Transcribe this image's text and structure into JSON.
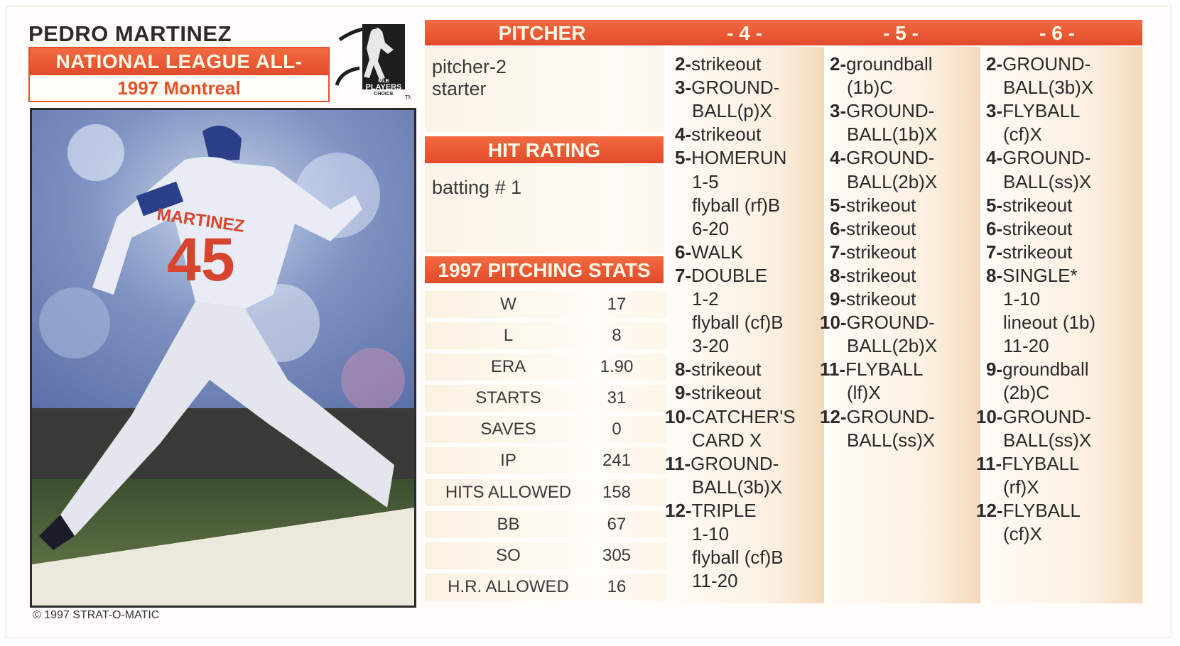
{
  "player": {
    "name": "PEDRO MARTINEZ",
    "allstar": "NATIONAL LEAGUE ALL-STAR",
    "season_team": "1997 Montreal"
  },
  "logo": {
    "text_top": "MLB",
    "text_main": "PLAYERS",
    "text_sub": "CHOICE",
    "tm": "TM"
  },
  "photo": {
    "jersey_name": "MARTINEZ",
    "jersey_number": "45"
  },
  "copyright": "© 1997 STRAT-O-MATIC",
  "header": {
    "pitcher": "PITCHER",
    "col4": "- 4 -",
    "col5": "- 5 -",
    "col6": "- 6 -"
  },
  "pitcher_info": {
    "line1": "pitcher-2",
    "line2": "starter"
  },
  "hit_rating": {
    "title": "HIT RATING",
    "value": "batting # 1"
  },
  "pitching_stats": {
    "title": "1997 PITCHING STATS",
    "rows": [
      {
        "label": "W",
        "value": "17"
      },
      {
        "label": "L",
        "value": "8"
      },
      {
        "label": "ERA",
        "value": "1.90"
      },
      {
        "label": "STARTS",
        "value": "31"
      },
      {
        "label": "SAVES",
        "value": "0"
      },
      {
        "label": "IP",
        "value": "241"
      },
      {
        "label": "HITS ALLOWED",
        "value": "158"
      },
      {
        "label": "BB",
        "value": "67"
      },
      {
        "label": "SO",
        "value": "305"
      },
      {
        "label": "H.R. ALLOWED",
        "value": "16"
      }
    ]
  },
  "columns": [
    {
      "id": "4",
      "lines": [
        {
          "n": "2-",
          "t": "strikeout"
        },
        {
          "n": "3-",
          "t": "GROUND-"
        },
        {
          "n": "",
          "t": "BALL(p)X"
        },
        {
          "n": "4-",
          "t": "strikeout"
        },
        {
          "n": "5-",
          "t": "HOMERUN"
        },
        {
          "n": "",
          "t": "1-5"
        },
        {
          "n": "",
          "t": "flyball (rf)B"
        },
        {
          "n": "",
          "t": "6-20"
        },
        {
          "n": "6-",
          "t": "WALK"
        },
        {
          "n": "7-",
          "t": "DOUBLE"
        },
        {
          "n": "",
          "t": "1-2"
        },
        {
          "n": "",
          "t": "flyball (cf)B"
        },
        {
          "n": "",
          "t": "3-20"
        },
        {
          "n": "8-",
          "t": "strikeout"
        },
        {
          "n": "9-",
          "t": "strikeout"
        },
        {
          "n": "10-",
          "t": "CATCHER'S"
        },
        {
          "n": "",
          "t": "CARD X"
        },
        {
          "n": "11-",
          "t": "GROUND-"
        },
        {
          "n": "",
          "t": "BALL(3b)X"
        },
        {
          "n": "12-",
          "t": "TRIPLE"
        },
        {
          "n": "",
          "t": "1-10"
        },
        {
          "n": "",
          "t": "flyball (cf)B"
        },
        {
          "n": "",
          "t": "11-20"
        }
      ]
    },
    {
      "id": "5",
      "lines": [
        {
          "n": "2-",
          "t": "groundball"
        },
        {
          "n": "",
          "t": "(1b)C"
        },
        {
          "n": "3-",
          "t": "GROUND-"
        },
        {
          "n": "",
          "t": "BALL(1b)X"
        },
        {
          "n": "4-",
          "t": "GROUND-"
        },
        {
          "n": "",
          "t": "BALL(2b)X"
        },
        {
          "n": "5-",
          "t": "strikeout"
        },
        {
          "n": "6-",
          "t": "strikeout"
        },
        {
          "n": "7-",
          "t": "strikeout"
        },
        {
          "n": "8-",
          "t": "strikeout"
        },
        {
          "n": "9-",
          "t": "strikeout"
        },
        {
          "n": "10-",
          "t": "GROUND-"
        },
        {
          "n": "",
          "t": "BALL(2b)X"
        },
        {
          "n": "11-",
          "t": "FLYBALL"
        },
        {
          "n": "",
          "t": "(lf)X"
        },
        {
          "n": "12-",
          "t": "GROUND-"
        },
        {
          "n": "",
          "t": "BALL(ss)X"
        }
      ]
    },
    {
      "id": "6",
      "lines": [
        {
          "n": "2-",
          "t": "GROUND-"
        },
        {
          "n": "",
          "t": "BALL(3b)X"
        },
        {
          "n": "3-",
          "t": "FLYBALL"
        },
        {
          "n": "",
          "t": "(cf)X"
        },
        {
          "n": "4-",
          "t": "GROUND-"
        },
        {
          "n": "",
          "t": "BALL(ss)X"
        },
        {
          "n": "5-",
          "t": "strikeout"
        },
        {
          "n": "6-",
          "t": "strikeout"
        },
        {
          "n": "7-",
          "t": "strikeout"
        },
        {
          "n": "8-",
          "t": "SINGLE*"
        },
        {
          "n": "",
          "t": "1-10"
        },
        {
          "n": "",
          "t": "lineout (1b)"
        },
        {
          "n": "",
          "t": "11-20"
        },
        {
          "n": "9-",
          "t": "groundball"
        },
        {
          "n": "",
          "t": "(2b)C"
        },
        {
          "n": "10-",
          "t": "GROUND-"
        },
        {
          "n": "",
          "t": "BALL(ss)X"
        },
        {
          "n": "11-",
          "t": "FLYBALL"
        },
        {
          "n": "",
          "t": "(rf)X"
        },
        {
          "n": "12-",
          "t": "FLYBALL"
        },
        {
          "n": "",
          "t": "(cf)X"
        }
      ]
    }
  ]
}
